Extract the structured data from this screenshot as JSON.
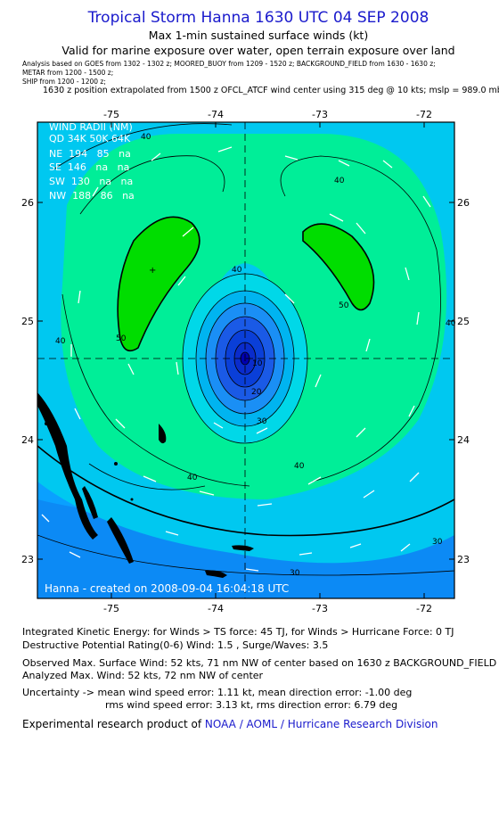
{
  "header": {
    "title": "Tropical Storm Hanna 1630 UTC 04 SEP 2008",
    "subtitle": "Max 1-min sustained surface winds (kt)",
    "subtitle2": "Valid for marine exposure over water, open terrain exposure over land",
    "meta_line1": "Analysis based on  GOES from 1302 - 1302 z;  MOORED_BUOY from 1209 - 1520 z;  BACKGROUND_FIELD from 1630 - 1630 z;",
    "meta_line2": "METAR from 1200 - 1500 z;",
    "meta_line3": "SHIP from 1200 - 1200 z;",
    "position_line": "1630 z position extrapolated from 1500 z OFCL_ATCF wind center using 315 deg @ 10 kts; mslp = 989.0 mb"
  },
  "map": {
    "lon_ticks": [
      "-75",
      "-74",
      "-73",
      "-72"
    ],
    "lat_ticks": [
      "26",
      "25",
      "24",
      "23"
    ],
    "colors": {
      "frame": "#000000",
      "level_lt10": "#0000b0",
      "level_10": "#0a2ccc",
      "level_20": "#1a5ae6",
      "level_30": "#00c8f0",
      "level_40": "#00ee98",
      "level_50": "#00dd00",
      "outer_blue": "#0aa0ff",
      "land": "#000000"
    },
    "contour_labels": [
      "40",
      "40",
      "40",
      "40",
      "50",
      "50",
      "40",
      "40",
      "30",
      "20",
      "10",
      "30",
      "30",
      "40"
    ],
    "wind_radii": {
      "title": "WIND RADII (NM)",
      "header": "QD 34K 50K 64K",
      "rows": [
        "NE  194   85   na",
        "SE  146   na   na",
        "SW  130   na   na",
        "NW  188   86   na"
      ]
    },
    "footer": "Hanna - created on 2008-09-04 16:04:18 UTC"
  },
  "info": {
    "ike": "Integrated Kinetic Energy:  for Winds > TS force: 45 TJ,  for Winds > Hurricane Force: 0 TJ",
    "dpr": "Destructive Potential Rating(0-6)   Wind: 1.5 , Surge/Waves: 3.5",
    "obs": "Observed Max. Surface Wind: 52 kts, 71 nm NW of center based on 1630 z BACKGROUND_FIELD",
    "analyzed": "Analyzed Max. Wind: 52 kts, 72 nm NW of center",
    "uncert1": "Uncertainty -> mean wind speed error: 1.11 kt,   mean direction error:  -1.00 deg",
    "uncert2": "rms wind speed error: 3.13 kt,   rms direction error: 6.79 deg",
    "credit_prefix": "Experimental research product of ",
    "credit_link": "NOAA / AOML / Hurricane Research Division"
  }
}
